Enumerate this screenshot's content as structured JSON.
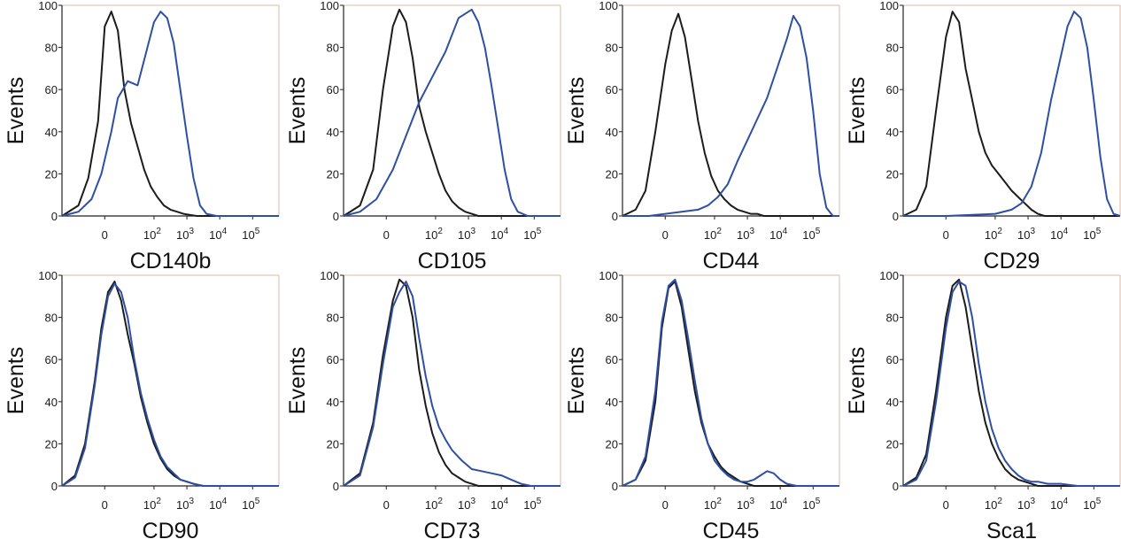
{
  "colors": {
    "control": "#1c1c1c",
    "stained": "#2e4fa3",
    "frame": "#d8b8a8"
  },
  "chart_data": [
    {
      "type": "histogram",
      "xlabel": "CD140b",
      "ylabel": "Events",
      "ylim": [
        0,
        100
      ],
      "y_ticks": [
        "0",
        "20",
        "40",
        "60",
        "80",
        "100"
      ],
      "x_ticks": [
        {
          "label": "0",
          "sup": ""
        },
        {
          "label": "10",
          "sup": "2"
        },
        {
          "label": "10",
          "sup": "3"
        },
        {
          "label": "10",
          "sup": "4"
        },
        {
          "label": "10",
          "sup": "5"
        }
      ],
      "series": [
        {
          "role": "control",
          "x": [
            -1.3,
            -0.8,
            -0.5,
            -0.2,
            0,
            0.2,
            0.4,
            0.6,
            0.8,
            1,
            1.2,
            1.4,
            1.6,
            1.8,
            2,
            2.2,
            2.4,
            2.6,
            2.8,
            3,
            3.4,
            5.3
          ],
          "y": [
            0,
            5,
            18,
            45,
            90,
            97,
            88,
            60,
            44,
            33,
            22,
            14,
            9,
            5,
            3,
            2,
            1,
            0.5,
            0,
            0,
            0,
            0
          ]
        },
        {
          "role": "stained",
          "x": [
            -1.3,
            -0.8,
            -0.4,
            -0.1,
            0.2,
            0.4,
            0.7,
            1,
            1.3,
            1.5,
            1.7,
            1.9,
            2.1,
            2.3,
            2.5,
            2.7,
            2.9,
            3.1,
            3.4,
            5.3
          ],
          "y": [
            0,
            2,
            8,
            20,
            40,
            56,
            64,
            62,
            80,
            92,
            97,
            94,
            82,
            60,
            38,
            18,
            5,
            1,
            0,
            0
          ]
        }
      ]
    },
    {
      "type": "histogram",
      "xlabel": "CD105",
      "ylabel": "Events",
      "ylim": [
        0,
        100
      ],
      "y_ticks": [
        "0",
        "20",
        "40",
        "60",
        "80",
        "100"
      ],
      "x_ticks": [
        {
          "label": "0",
          "sup": ""
        },
        {
          "label": "10",
          "sup": "2"
        },
        {
          "label": "10",
          "sup": "3"
        },
        {
          "label": "10",
          "sup": "4"
        },
        {
          "label": "10",
          "sup": "5"
        }
      ],
      "series": [
        {
          "role": "control",
          "x": [
            -1.3,
            -0.8,
            -0.4,
            -0.1,
            0.2,
            0.4,
            0.6,
            0.8,
            1,
            1.2,
            1.4,
            1.6,
            1.8,
            2,
            2.2,
            2.4,
            2.6,
            2.8,
            3,
            3.4,
            5.3
          ],
          "y": [
            0,
            5,
            22,
            60,
            90,
            98,
            92,
            75,
            52,
            40,
            30,
            20,
            12,
            7,
            4,
            2,
            1,
            0,
            0,
            0,
            0
          ]
        },
        {
          "role": "stained",
          "x": [
            -1.3,
            -0.8,
            -0.3,
            0.2,
            0.6,
            1,
            1.4,
            1.8,
            2.2,
            2.6,
            2.8,
            3,
            3.2,
            3.4,
            3.6,
            3.8,
            4,
            4.3,
            5.3
          ],
          "y": [
            0,
            2,
            8,
            22,
            38,
            54,
            66,
            78,
            94,
            98,
            92,
            80,
            62,
            42,
            22,
            8,
            2,
            0,
            0
          ]
        }
      ]
    },
    {
      "type": "histogram",
      "xlabel": "CD44",
      "ylabel": "Events",
      "ylim": [
        0,
        100
      ],
      "y_ticks": [
        "0",
        "20",
        "40",
        "60",
        "80",
        "100"
      ],
      "x_ticks": [
        {
          "label": "0",
          "sup": ""
        },
        {
          "label": "10",
          "sup": "2"
        },
        {
          "label": "10",
          "sup": "3"
        },
        {
          "label": "10",
          "sup": "4"
        },
        {
          "label": "10",
          "sup": "5"
        }
      ],
      "series": [
        {
          "role": "control",
          "x": [
            -1.3,
            -0.9,
            -0.6,
            -0.3,
            0,
            0.2,
            0.4,
            0.6,
            0.8,
            1,
            1.2,
            1.4,
            1.6,
            1.8,
            2,
            2.2,
            2.4,
            2.6,
            2.8,
            3,
            3.2,
            3.5,
            3.8,
            5.3
          ],
          "y": [
            0,
            3,
            12,
            40,
            72,
            88,
            96,
            85,
            65,
            45,
            30,
            19,
            12,
            8,
            5,
            3,
            2,
            1,
            1,
            0,
            0,
            0,
            0,
            0
          ]
        },
        {
          "role": "stained",
          "x": [
            -1.3,
            -0.5,
            0,
            0.5,
            1,
            1.3,
            1.6,
            1.9,
            2.2,
            2.5,
            2.8,
            3.1,
            3.4,
            3.7,
            3.9,
            4.1,
            4.3,
            4.5,
            4.7,
            4.9,
            5.1,
            5.3
          ],
          "y": [
            0,
            0,
            1,
            2,
            3,
            5,
            9,
            15,
            26,
            36,
            46,
            56,
            70,
            84,
            95,
            90,
            75,
            50,
            20,
            4,
            0,
            0
          ]
        }
      ]
    },
    {
      "type": "histogram",
      "xlabel": "CD29",
      "ylabel": "Events",
      "ylim": [
        0,
        100
      ],
      "y_ticks": [
        "0",
        "20",
        "40",
        "60",
        "80",
        "100"
      ],
      "x_ticks": [
        {
          "label": "0",
          "sup": ""
        },
        {
          "label": "10",
          "sup": "2"
        },
        {
          "label": "10",
          "sup": "3"
        },
        {
          "label": "10",
          "sup": "4"
        },
        {
          "label": "10",
          "sup": "5"
        }
      ],
      "series": [
        {
          "role": "control",
          "x": [
            -1.3,
            -0.9,
            -0.6,
            -0.3,
            0,
            0.2,
            0.4,
            0.6,
            0.8,
            1,
            1.2,
            1.4,
            1.6,
            1.8,
            2,
            2.2,
            2.4,
            2.6,
            2.8,
            3,
            3.2,
            3.5,
            5.3
          ],
          "y": [
            0,
            3,
            14,
            50,
            85,
            97,
            92,
            70,
            55,
            40,
            30,
            24,
            20,
            16,
            12,
            9,
            6,
            3,
            1,
            0,
            0,
            0,
            0
          ]
        },
        {
          "role": "stained",
          "x": [
            -1.3,
            0,
            1.5,
            2,
            2.3,
            2.6,
            2.9,
            3.2,
            3.5,
            3.7,
            3.9,
            4.1,
            4.3,
            4.5,
            4.7,
            4.9,
            5.1,
            5.3
          ],
          "y": [
            0,
            0,
            1,
            3,
            6,
            14,
            30,
            55,
            76,
            90,
            97,
            94,
            80,
            55,
            28,
            8,
            1,
            0
          ]
        }
      ]
    },
    {
      "type": "histogram",
      "xlabel": "CD90",
      "ylabel": "Events",
      "ylim": [
        0,
        100
      ],
      "y_ticks": [
        "0",
        "20",
        "40",
        "60",
        "80",
        "100"
      ],
      "x_ticks": [
        {
          "label": "0",
          "sup": ""
        },
        {
          "label": "10",
          "sup": "2"
        },
        {
          "label": "10",
          "sup": "3"
        },
        {
          "label": "10",
          "sup": "4"
        },
        {
          "label": "10",
          "sup": "5"
        }
      ],
      "series": [
        {
          "role": "control",
          "x": [
            -1.3,
            -0.9,
            -0.6,
            -0.3,
            -0.1,
            0.1,
            0.3,
            0.5,
            0.7,
            0.9,
            1.1,
            1.3,
            1.5,
            1.7,
            1.9,
            2.1,
            2.3,
            2.5,
            2.7,
            3,
            3.4,
            5.3
          ],
          "y": [
            0,
            5,
            20,
            50,
            75,
            92,
            97,
            88,
            72,
            58,
            42,
            30,
            20,
            13,
            8,
            5,
            3,
            2,
            1,
            0,
            0,
            0
          ]
        },
        {
          "role": "stained",
          "x": [
            -1.3,
            -0.9,
            -0.6,
            -0.3,
            -0.1,
            0.1,
            0.3,
            0.5,
            0.7,
            0.9,
            1.1,
            1.3,
            1.5,
            1.7,
            1.9,
            2.1,
            2.3,
            2.5,
            2.7,
            3,
            3.4,
            5.3
          ],
          "y": [
            0,
            4,
            18,
            48,
            72,
            90,
            96,
            92,
            80,
            60,
            44,
            32,
            22,
            14,
            9,
            6,
            3,
            2,
            1,
            0,
            0,
            0
          ]
        }
      ]
    },
    {
      "type": "histogram",
      "xlabel": "CD73",
      "ylabel": "Events",
      "ylim": [
        0,
        100
      ],
      "y_ticks": [
        "0",
        "20",
        "40",
        "60",
        "80",
        "100"
      ],
      "x_ticks": [
        {
          "label": "0",
          "sup": ""
        },
        {
          "label": "10",
          "sup": "2"
        },
        {
          "label": "10",
          "sup": "3"
        },
        {
          "label": "10",
          "sup": "4"
        },
        {
          "label": "10",
          "sup": "5"
        }
      ],
      "series": [
        {
          "role": "control",
          "x": [
            -1.3,
            -0.8,
            -0.4,
            -0.1,
            0.2,
            0.4,
            0.6,
            0.8,
            1,
            1.2,
            1.4,
            1.6,
            1.8,
            2,
            2.2,
            2.4,
            2.6,
            2.8,
            3,
            3.3,
            5.3
          ],
          "y": [
            0,
            6,
            30,
            62,
            88,
            98,
            95,
            80,
            55,
            38,
            25,
            16,
            10,
            6,
            4,
            2,
            1,
            0,
            0,
            0,
            0
          ]
        },
        {
          "role": "stained",
          "x": [
            -1.3,
            -0.8,
            -0.4,
            -0.1,
            0.2,
            0.4,
            0.6,
            0.8,
            1,
            1.2,
            1.4,
            1.6,
            1.8,
            2,
            2.3,
            2.6,
            2.9,
            3.2,
            3.5,
            3.8,
            4.1,
            4.4,
            4.8,
            5.3
          ],
          "y": [
            0,
            5,
            28,
            58,
            85,
            92,
            97,
            90,
            70,
            52,
            38,
            28,
            22,
            17,
            12,
            8,
            7,
            6,
            5,
            3,
            1,
            0,
            0,
            0
          ]
        }
      ]
    },
    {
      "type": "histogram",
      "xlabel": "CD45",
      "ylabel": "Events",
      "ylim": [
        0,
        100
      ],
      "y_ticks": [
        "0",
        "20",
        "40",
        "60",
        "80",
        "100"
      ],
      "x_ticks": [
        {
          "label": "0",
          "sup": ""
        },
        {
          "label": "10",
          "sup": "2"
        },
        {
          "label": "10",
          "sup": "3"
        },
        {
          "label": "10",
          "sup": "4"
        },
        {
          "label": "10",
          "sup": "5"
        }
      ],
      "series": [
        {
          "role": "control",
          "x": [
            -1.3,
            -0.9,
            -0.6,
            -0.3,
            -0.1,
            0.1,
            0.3,
            0.5,
            0.7,
            0.9,
            1.1,
            1.3,
            1.5,
            1.7,
            1.9,
            2.1,
            2.3,
            2.5,
            2.7,
            3,
            3.3,
            5.3
          ],
          "y": [
            0,
            3,
            12,
            40,
            75,
            94,
            97,
            85,
            65,
            45,
            30,
            20,
            14,
            9,
            6,
            4,
            2,
            1,
            0,
            0,
            0,
            0
          ]
        },
        {
          "role": "stained",
          "x": [
            -1.3,
            -0.9,
            -0.6,
            -0.3,
            -0.1,
            0.1,
            0.3,
            0.5,
            0.7,
            0.9,
            1.1,
            1.3,
            1.5,
            1.7,
            1.9,
            2.1,
            2.3,
            2.5,
            2.7,
            2.9,
            3.1,
            3.3,
            3.5,
            3.7,
            4,
            5.3
          ],
          "y": [
            0,
            3,
            14,
            45,
            78,
            95,
            98,
            88,
            70,
            50,
            32,
            20,
            12,
            8,
            5,
            3,
            2,
            2,
            3,
            5,
            7,
            6,
            3,
            1,
            0,
            0
          ]
        }
      ]
    },
    {
      "type": "histogram",
      "xlabel": "Sca1",
      "ylabel": "Events",
      "ylim": [
        0,
        100
      ],
      "y_ticks": [
        "0",
        "20",
        "40",
        "60",
        "80",
        "100"
      ],
      "x_ticks": [
        {
          "label": "0",
          "sup": ""
        },
        {
          "label": "10",
          "sup": "2"
        },
        {
          "label": "10",
          "sup": "3"
        },
        {
          "label": "10",
          "sup": "4"
        },
        {
          "label": "10",
          "sup": "5"
        }
      ],
      "series": [
        {
          "role": "control",
          "x": [
            -1.3,
            -0.9,
            -0.6,
            -0.3,
            0,
            0.2,
            0.4,
            0.6,
            0.8,
            1,
            1.2,
            1.4,
            1.6,
            1.8,
            2,
            2.2,
            2.4,
            2.6,
            2.8,
            3.1,
            3.4,
            5.3
          ],
          "y": [
            0,
            4,
            15,
            45,
            80,
            95,
            98,
            85,
            65,
            45,
            30,
            20,
            13,
            8,
            5,
            3,
            2,
            1,
            0,
            0,
            0,
            0
          ]
        },
        {
          "role": "stained",
          "x": [
            -1.3,
            -0.9,
            -0.6,
            -0.3,
            0,
            0.2,
            0.4,
            0.6,
            0.8,
            1,
            1.2,
            1.4,
            1.6,
            1.8,
            2,
            2.2,
            2.4,
            2.6,
            2.8,
            3.1,
            3.5,
            4,
            4.5,
            5.3
          ],
          "y": [
            0,
            3,
            12,
            40,
            75,
            92,
            97,
            95,
            80,
            58,
            40,
            27,
            18,
            12,
            8,
            5,
            3,
            2,
            2,
            1,
            1,
            0,
            0,
            0
          ]
        }
      ]
    }
  ]
}
